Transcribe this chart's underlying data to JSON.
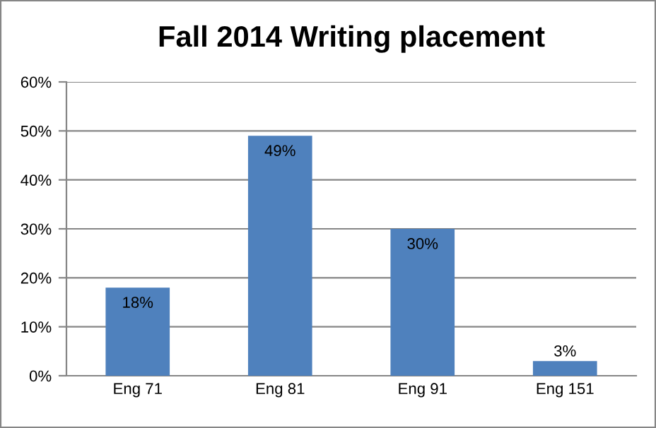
{
  "chart_data": {
    "type": "bar",
    "title": "Fall 2014 Writing placement",
    "categories": [
      "Eng 71",
      "Eng 81",
      "Eng 91",
      "Eng 151"
    ],
    "values": [
      18,
      49,
      30,
      3
    ],
    "value_labels": [
      "18%",
      "49%",
      "30%",
      "3%"
    ],
    "color": "#4f81bd",
    "ylim": [
      0,
      60
    ],
    "yticks": [
      {
        "value": 0,
        "label": "0%"
      },
      {
        "value": 10,
        "label": "10%"
      },
      {
        "value": 20,
        "label": "20%"
      },
      {
        "value": 30,
        "label": "30%"
      },
      {
        "value": 40,
        "label": "40%"
      },
      {
        "value": 50,
        "label": "50%"
      },
      {
        "value": 60,
        "label": "60%"
      }
    ],
    "grid": "y"
  }
}
